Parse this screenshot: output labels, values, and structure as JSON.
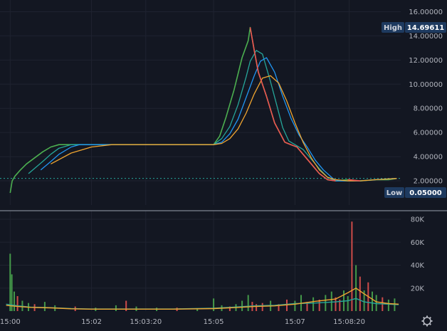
{
  "colors": {
    "background": "#131722",
    "grid": "#1f2330",
    "separator": "#9aa0ad",
    "up": "#4caf50",
    "down": "#ef5350",
    "ma_fast": "#26a69a",
    "ma_mid": "#2196f3",
    "ma_slow": "#f0a530",
    "baseline": "#26a69a",
    "badge_bg": "#1e3a5f",
    "tick_text": "#b2b5be"
  },
  "badges": {
    "high_label": "High",
    "high_value": "14.69611",
    "low_label": "Low",
    "low_value": "0.05000"
  },
  "settings_icon": "gear-icon",
  "chart_data": [
    {
      "type": "line",
      "panel": "price",
      "ylim": [
        0,
        16.5
      ],
      "y_ticks": [
        "16.00000",
        "14.00000",
        "12.00000",
        "10.00000",
        "8.00000",
        "6.00000",
        "4.00000",
        "2.00000"
      ],
      "y_tick_values": [
        16,
        14,
        12,
        10,
        8,
        6,
        4,
        2
      ],
      "xlim": [
        "15:00",
        "15:10"
      ],
      "x_ticks": [
        "15:00",
        "15:02",
        "15:03:20",
        "15:05",
        "15:07",
        "15:08:20"
      ],
      "x_tick_values": [
        0,
        2,
        3.333,
        5,
        7,
        8.333
      ],
      "x_range_minutes": [
        -0.25,
        9.6
      ],
      "grid": true,
      "high": 14.69611,
      "low": 0.05,
      "last_price": 2.2,
      "series": [
        {
          "x": [
            0,
            0.05,
            0.12,
            0.25,
            0.4,
            0.6,
            0.8,
            1.0,
            1.2,
            1.5,
            2.0,
            3.0,
            4.0,
            5.0,
            5.15,
            5.3,
            5.5,
            5.7,
            5.85,
            5.9,
            6.0,
            6.1,
            6.3,
            6.5,
            6.75,
            6.9,
            7.05,
            7.2,
            7.4,
            7.6,
            7.8,
            8.0,
            8.3,
            8.6,
            9.0,
            9.3,
            9.5
          ],
          "y": [
            1.0,
            2.0,
            2.4,
            2.9,
            3.4,
            3.9,
            4.4,
            4.8,
            5.0,
            5.0,
            5.0,
            5.0,
            5.0,
            5.0,
            5.7,
            7.2,
            9.5,
            12.2,
            13.6,
            14.7,
            12.8,
            11.0,
            9.0,
            6.8,
            5.2,
            5.0,
            4.8,
            4.2,
            3.4,
            2.6,
            2.1,
            2.0,
            2.1,
            2.0,
            2.1,
            2.1,
            2.2
          ]
        },
        {
          "x": [
            0.45,
            0.8,
            1.0,
            1.2,
            1.5,
            2.0,
            3.0,
            4.0,
            5.0,
            5.2,
            5.4,
            5.6,
            5.8,
            5.9,
            6.05,
            6.2,
            6.4,
            6.55,
            6.7,
            6.85,
            7.0,
            7.2,
            7.4,
            7.6,
            7.8,
            8.0,
            8.3,
            8.6,
            9.0,
            9.5
          ],
          "y": [
            2.6,
            3.6,
            4.2,
            4.7,
            5.0,
            5.0,
            5.0,
            5.0,
            5.0,
            5.5,
            6.5,
            8.3,
            10.6,
            11.9,
            12.8,
            12.5,
            10.2,
            8.3,
            6.4,
            5.3,
            5.0,
            4.6,
            3.8,
            3.0,
            2.3,
            2.0,
            2.0,
            2.0,
            2.1,
            2.2
          ]
        },
        {
          "x": [
            0.75,
            1.0,
            1.2,
            1.5,
            1.7,
            2.0,
            3.0,
            4.0,
            5.0,
            5.2,
            5.4,
            5.6,
            5.8,
            6.0,
            6.15,
            6.3,
            6.5,
            6.7,
            6.9,
            7.1,
            7.3,
            7.5,
            7.7,
            7.9,
            8.0,
            8.3,
            8.6,
            9.0,
            9.5
          ],
          "y": [
            2.9,
            3.6,
            4.2,
            4.8,
            5.0,
            5.0,
            5.0,
            5.0,
            5.0,
            5.2,
            5.9,
            7.1,
            8.9,
            10.7,
            11.9,
            12.2,
            11.0,
            9.0,
            7.2,
            5.8,
            4.8,
            3.7,
            2.9,
            2.3,
            2.0,
            2.0,
            2.0,
            2.1,
            2.2
          ]
        },
        {
          "x": [
            1.0,
            1.5,
            2.0,
            2.5,
            3.0,
            4.0,
            5.0,
            5.2,
            5.4,
            5.6,
            5.8,
            6.0,
            6.2,
            6.4,
            6.6,
            6.8,
            7.0,
            7.2,
            7.4,
            7.6,
            7.8,
            8.0,
            8.3,
            8.6,
            9.0,
            9.5
          ],
          "y": [
            3.4,
            4.3,
            4.8,
            5.0,
            5.0,
            5.0,
            5.0,
            5.1,
            5.5,
            6.3,
            7.6,
            9.2,
            10.5,
            10.7,
            10.1,
            8.6,
            6.8,
            5.2,
            3.9,
            2.9,
            2.3,
            2.1,
            2.0,
            2.0,
            2.1,
            2.2
          ]
        }
      ]
    },
    {
      "type": "bar",
      "panel": "volume",
      "ylim": [
        0,
        85000
      ],
      "y_ticks": [
        "80K",
        "60K",
        "40K",
        "20K"
      ],
      "y_tick_values": [
        80000,
        60000,
        40000,
        20000
      ],
      "x_range_minutes": [
        -0.25,
        9.6
      ],
      "bars_x": [
        0,
        0.04,
        0.1,
        0.18,
        0.3,
        0.45,
        0.6,
        0.85,
        1.1,
        1.6,
        2.1,
        2.6,
        2.85,
        3.1,
        3.6,
        4.1,
        4.6,
        5.0,
        5.2,
        5.4,
        5.55,
        5.7,
        5.85,
        5.95,
        6.05,
        6.2,
        6.4,
        6.6,
        6.8,
        7.0,
        7.15,
        7.3,
        7.45,
        7.6,
        7.75,
        7.9,
        8.0,
        8.1,
        8.2,
        8.3,
        8.4,
        8.5,
        8.6,
        8.7,
        8.8,
        8.9,
        9.0,
        9.15,
        9.3,
        9.45
      ],
      "bars_volume": [
        50000,
        32000,
        17000,
        13000,
        9000,
        7000,
        6000,
        8000,
        5000,
        4000,
        3000,
        5000,
        9000,
        4000,
        3000,
        3000,
        2000,
        11000,
        5000,
        4000,
        6000,
        9000,
        14000,
        8000,
        6000,
        7000,
        9000,
        6000,
        10000,
        9000,
        14000,
        8000,
        12000,
        10000,
        14000,
        17000,
        12000,
        10000,
        18000,
        13000,
        78000,
        40000,
        30000,
        18000,
        25000,
        17000,
        14000,
        12000,
        10000,
        11000
      ],
      "bars_up": [
        true,
        true,
        true,
        false,
        true,
        true,
        false,
        true,
        true,
        false,
        true,
        true,
        false,
        true,
        true,
        false,
        true,
        true,
        true,
        false,
        true,
        true,
        true,
        false,
        false,
        false,
        true,
        false,
        false,
        true,
        true,
        false,
        true,
        false,
        true,
        true,
        false,
        false,
        true,
        true,
        false,
        true,
        false,
        true,
        false,
        true,
        true,
        false,
        true,
        true
      ],
      "series": [
        {
          "x": [
            -0.1,
            0.2,
            0.5,
            1.0,
            1.5,
            2.0,
            3.0,
            4.0,
            5.0,
            5.5,
            6.0,
            6.5,
            7.0,
            7.5,
            8.0,
            8.3,
            8.5,
            8.7,
            9.0,
            9.3,
            9.55
          ],
          "y": [
            6000,
            4500,
            3500,
            3000,
            2200,
            1800,
            1800,
            1800,
            2500,
            3500,
            4500,
            5000,
            6500,
            7000,
            8000,
            9000,
            11000,
            8000,
            6500,
            6000,
            5500
          ]
        },
        {
          "x": [
            -0.1,
            0.2,
            0.5,
            1.0,
            1.5,
            2.0,
            3.0,
            4.0,
            5.0,
            5.5,
            6.0,
            6.5,
            7.0,
            7.5,
            8.0,
            8.3,
            8.5,
            8.7,
            9.0,
            9.3,
            9.55
          ],
          "y": [
            5000,
            4000,
            3200,
            2800,
            2000,
            1700,
            1700,
            1700,
            2200,
            3000,
            4000,
            4500,
            6000,
            8500,
            10500,
            16000,
            20000,
            15000,
            8000,
            6500,
            6000
          ]
        }
      ]
    }
  ]
}
